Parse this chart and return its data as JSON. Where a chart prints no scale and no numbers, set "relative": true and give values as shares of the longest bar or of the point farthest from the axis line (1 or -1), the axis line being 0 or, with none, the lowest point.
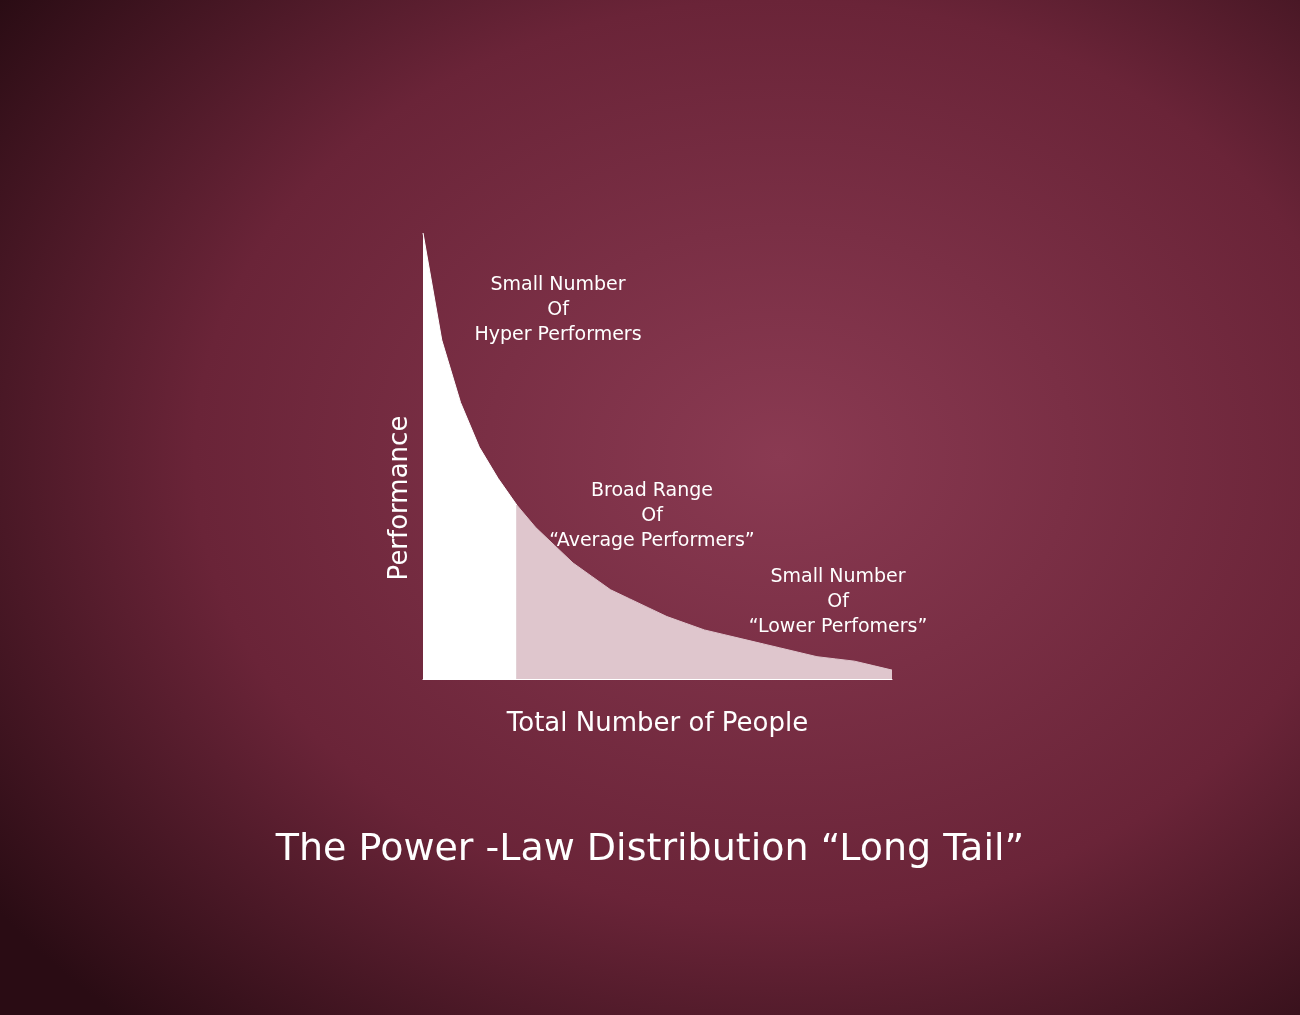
{
  "chart_data": {
    "type": "area",
    "relative": true,
    "title": "The Power -Law Distribution “Long Tail”",
    "xlabel": "Total Number of People",
    "ylabel": "Performance",
    "annotations": [
      "Small Number\nOf\nHyper Performers",
      "Broad Range\nOf\n“Average Performers”",
      "Small Number\nOf\n“Lower Perfomers”"
    ],
    "categories": [
      null,
      null,
      null,
      null,
      null,
      null,
      null,
      null,
      null,
      null,
      null,
      null,
      null,
      null,
      null,
      null,
      null,
      null,
      null,
      null,
      null,
      null,
      null,
      null,
      null,
      null
    ],
    "series": [
      {
        "color": "#ffffff",
        "values": [
          1,
          0.76,
          0.62,
          0.52,
          0.45,
          0.39,
          null,
          null,
          null,
          null,
          null,
          null,
          null,
          null,
          null,
          null,
          null,
          null,
          null,
          null,
          null,
          null,
          null,
          null,
          null,
          null
        ]
      },
      {
        "color": "#dfc6cd",
        "values": [
          null,
          null,
          null,
          null,
          null,
          0.39,
          0.34,
          0.3,
          0.26,
          0.23,
          0.2,
          0.18,
          0.16,
          0.14,
          0.125,
          0.11,
          0.1,
          0.09,
          0.08,
          0.07,
          0.06,
          0.05,
          0.045,
          0.04,
          0.03,
          0.02
        ]
      }
    ]
  }
}
